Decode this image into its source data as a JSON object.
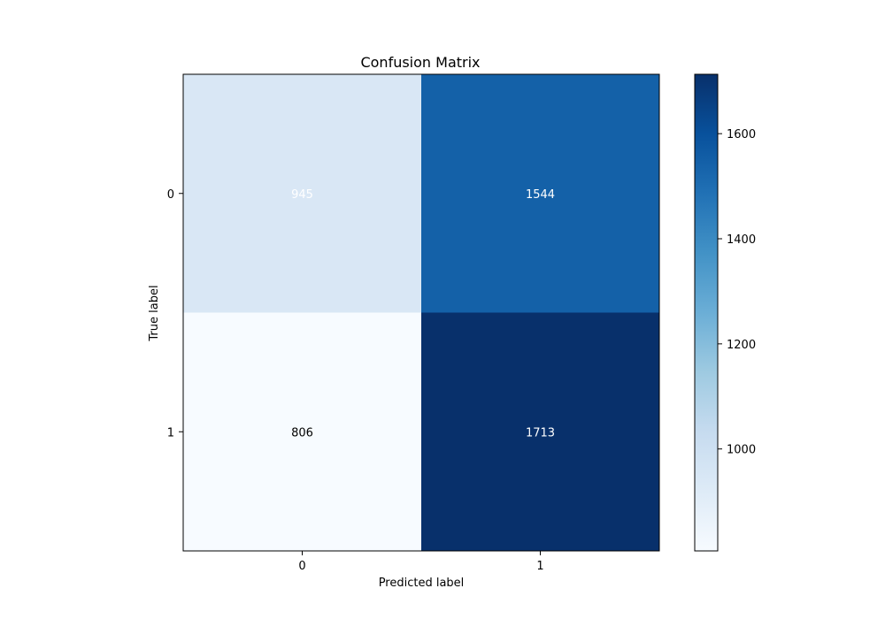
{
  "chart_data": {
    "type": "heatmap",
    "title": "Confusion Matrix",
    "xlabel": "Predicted label",
    "ylabel": "True label",
    "x_categories": [
      "0",
      "1"
    ],
    "y_categories": [
      "0",
      "1"
    ],
    "matrix": [
      [
        945,
        1544
      ],
      [
        806,
        1713
      ]
    ],
    "colormap": "Blues",
    "colorbar": {
      "range": [
        806,
        1713
      ],
      "ticks": [
        1000,
        1200,
        1400,
        1600
      ]
    },
    "cell_label_colors": [
      [
        "#ffffff",
        "#ffffff"
      ],
      [
        "#000000",
        "#ffffff"
      ]
    ]
  }
}
